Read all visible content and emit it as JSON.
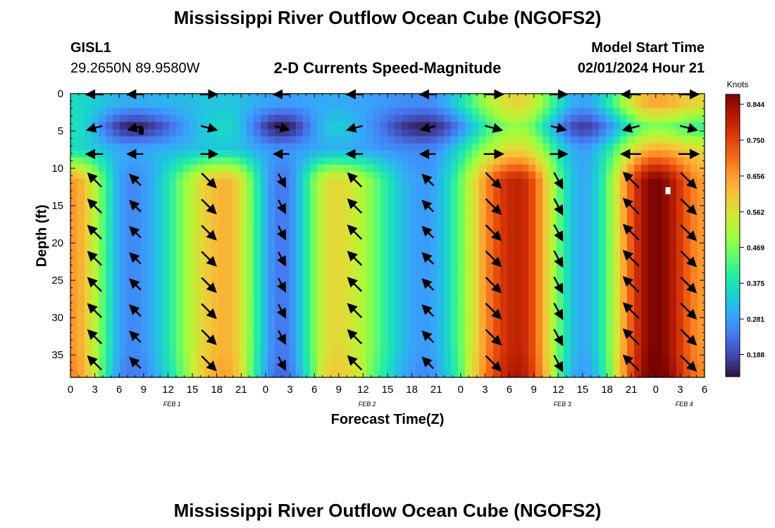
{
  "page": {
    "title": "Mississippi River Outflow Ocean Cube (NGOFS2)",
    "title_repeat": "Mississippi River Outflow Ocean Cube (NGOFS2)",
    "station_id": "GISL1",
    "station_coords": "29.2650N  89.9580W",
    "subtitle": "2-D Currents Speed-Magnitude",
    "model_start_label": "Model Start Time",
    "model_start_value": "02/01/2024 Hour 21"
  },
  "chart_data": {
    "type": "heatmap",
    "title": "2-D Currents Speed-Magnitude",
    "xlabel": "Forecast Time(Z)",
    "ylabel": "Depth (ft)",
    "x_ticks": [
      "0",
      "3",
      "6",
      "9",
      "12",
      "15",
      "18",
      "21",
      "0",
      "3",
      "6",
      "9",
      "12",
      "15",
      "18",
      "21",
      "0",
      "3",
      "6",
      "9",
      "12",
      "15",
      "18",
      "21",
      "0",
      "3",
      "6"
    ],
    "x_range_hours": [
      0,
      78
    ],
    "date_labels": [
      {
        "label": "FEB 1",
        "hour": 12.5
      },
      {
        "label": "FEB 2",
        "hour": 36.5
      },
      {
        "label": "FEB 3",
        "hour": 60.5
      },
      {
        "label": "FEB 4",
        "hour": 75.5
      }
    ],
    "y_ticks": [
      0,
      5,
      10,
      15,
      20,
      25,
      30,
      35
    ],
    "ylim": [
      0,
      38
    ],
    "y_inverted": true,
    "colorbar": {
      "unit": "Knots",
      "tick_labels": [
        "0.844",
        "0.750",
        "0.656",
        "0.562",
        "0.469",
        "0.375",
        "0.281",
        "0.188"
      ],
      "range": [
        0.13,
        0.87
      ],
      "colors": [
        "#30123b",
        "#4145ab",
        "#4675ed",
        "#39a2fc",
        "#1bcfd4",
        "#24eca6",
        "#61fc6c",
        "#a4fc3b",
        "#d1e834",
        "#f3c63a",
        "#fe9b2d",
        "#f36315",
        "#d93806",
        "#b11901",
        "#7a0402"
      ]
    },
    "speed_peaks": [
      {
        "hour": 0,
        "deep": 0.66,
        "top": 0.36,
        "mid": 0.38
      },
      {
        "hour": 7.5,
        "deep": 0.26,
        "top": 0.3,
        "mid": 0.14
      },
      {
        "hour": 19,
        "deep": 0.63,
        "top": 0.33,
        "mid": 0.36
      },
      {
        "hour": 26,
        "deep": 0.24,
        "top": 0.28,
        "mid": 0.13
      },
      {
        "hour": 32.5,
        "deep": 0.58,
        "top": 0.3,
        "mid": 0.34
      },
      {
        "hour": 43.5,
        "deep": 0.28,
        "top": 0.26,
        "mid": 0.14
      },
      {
        "hour": 55,
        "deep": 0.8,
        "top": 0.58,
        "mid": 0.48
      },
      {
        "hour": 63,
        "deep": 0.3,
        "top": 0.29,
        "mid": 0.17
      },
      {
        "hour": 72,
        "deep": 0.87,
        "top": 0.64,
        "mid": 0.46
      },
      {
        "hour": 78,
        "deep": 0.66,
        "top": 0.58,
        "mid": 0.4
      }
    ],
    "vector_depths": [
      0,
      4.5,
      8,
      11.5,
      15,
      18.5,
      22,
      25.5,
      29,
      32.5,
      36
    ],
    "vector_columns": [
      {
        "hour": 3,
        "surface": "W",
        "mid": "WSW",
        "deep": "NW"
      },
      {
        "hour": 8,
        "surface": "W",
        "mid": "WSW",
        "deep": "NW"
      },
      {
        "hour": 17,
        "surface": "E",
        "mid": "ENE",
        "deep": "SE"
      },
      {
        "hour": 26,
        "surface": "W",
        "mid": "ENE",
        "deep": "SSE"
      },
      {
        "hour": 35,
        "surface": "W",
        "mid": "WSW",
        "deep": "NW"
      },
      {
        "hour": 44,
        "surface": "W",
        "mid": "WSW",
        "deep": "NW"
      },
      {
        "hour": 52,
        "surface": "E",
        "mid": "ENE",
        "deep": "SE"
      },
      {
        "hour": 60,
        "surface": "E",
        "mid": "ENE",
        "deep": "SSE"
      },
      {
        "hour": 69,
        "surface": "W",
        "mid": "WSW",
        "deep": "NW"
      },
      {
        "hour": 76,
        "surface": "E",
        "mid": "ENE",
        "deep": "SE"
      }
    ],
    "markers": [
      {
        "hour": 8.7,
        "depth": 5,
        "color": "#000000"
      },
      {
        "hour": 73.5,
        "depth": 13,
        "color": "#ffffff"
      }
    ]
  }
}
